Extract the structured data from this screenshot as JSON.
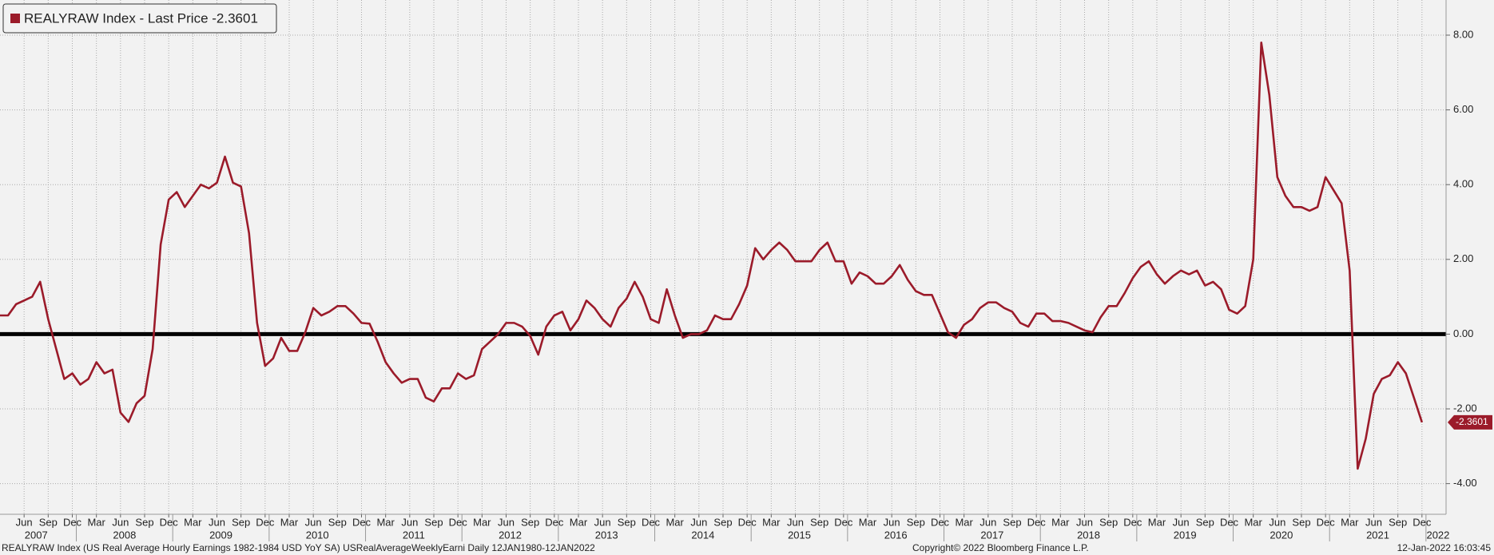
{
  "chart_data": {
    "type": "line",
    "series": [
      {
        "name": "REALYRAW Index - Last Price -2.3601",
        "color": "#9b1b2a",
        "values": [
          0.5,
          0.5,
          0.8,
          0.9,
          1.0,
          1.4,
          0.4,
          -0.4,
          -1.2,
          -1.05,
          -1.35,
          -1.2,
          -0.75,
          -1.05,
          -0.95,
          -2.1,
          -2.35,
          -1.85,
          -1.65,
          -0.4,
          2.4,
          3.6,
          3.8,
          3.4,
          3.7,
          4.0,
          3.9,
          4.05,
          4.75,
          4.05,
          3.95,
          2.7,
          0.3,
          -0.85,
          -0.65,
          -0.1,
          -0.45,
          -0.45,
          0.05,
          0.7,
          0.5,
          0.6,
          0.75,
          0.75,
          0.55,
          0.3,
          0.28,
          -0.2,
          -0.75,
          -1.05,
          -1.3,
          -1.2,
          -1.2,
          -1.7,
          -1.8,
          -1.45,
          -1.45,
          -1.05,
          -1.2,
          -1.1,
          -0.4,
          -0.2,
          0.0,
          0.3,
          0.3,
          0.2,
          -0.05,
          -0.55,
          0.2,
          0.5,
          0.6,
          0.1,
          0.4,
          0.9,
          0.7,
          0.4,
          0.2,
          0.7,
          0.95,
          1.4,
          1.0,
          0.4,
          0.3,
          1.2,
          0.5,
          -0.1,
          0.0,
          0.0,
          0.1,
          0.5,
          0.4,
          0.4,
          0.8,
          1.3,
          2.3,
          2.0,
          2.25,
          2.45,
          2.25,
          1.95,
          1.95,
          1.95,
          2.25,
          2.45,
          1.95,
          1.95,
          1.35,
          1.65,
          1.55,
          1.35,
          1.35,
          1.55,
          1.85,
          1.45,
          1.15,
          1.05,
          1.05,
          0.55,
          0.05,
          -0.1,
          0.25,
          0.4,
          0.7,
          0.85,
          0.85,
          0.7,
          0.6,
          0.3,
          0.2,
          0.55,
          0.55,
          0.35,
          0.35,
          0.3,
          0.2,
          0.1,
          0.05,
          0.45,
          0.75,
          0.75,
          1.1,
          1.5,
          1.8,
          1.95,
          1.6,
          1.35,
          1.55,
          1.7,
          1.6,
          1.7,
          1.3,
          1.4,
          1.2,
          0.65,
          0.55,
          0.75,
          2.0,
          7.8,
          6.4,
          4.2,
          3.7,
          3.4,
          3.4,
          3.3,
          3.4,
          4.2,
          3.85,
          3.5,
          1.7,
          -3.6,
          -2.8,
          -1.6,
          -1.2,
          -1.1,
          -0.75,
          -1.05,
          -1.7,
          -2.3601
        ]
      }
    ],
    "x": [
      "2007-03",
      "2007-04",
      "2007-05",
      "2007-06",
      "2007-07",
      "2007-08",
      "2007-09",
      "2007-10",
      "2007-11",
      "2007-12",
      "2008-01",
      "2008-02",
      "2008-03",
      "2008-04",
      "2008-05",
      "2008-06",
      "2008-07",
      "2008-08",
      "2008-09",
      "2008-10",
      "2008-11",
      "2008-12",
      "2009-01",
      "2009-02",
      "2009-03",
      "2009-04",
      "2009-05",
      "2009-06",
      "2009-07",
      "2009-08",
      "2009-09",
      "2009-10",
      "2009-11",
      "2009-12",
      "2010-01",
      "2010-02",
      "2010-03",
      "2010-04",
      "2010-05",
      "2010-06",
      "2010-07",
      "2010-08",
      "2010-09",
      "2010-10",
      "2010-11",
      "2010-12",
      "2011-01",
      "2011-02",
      "2011-03",
      "2011-04",
      "2011-05",
      "2011-06",
      "2011-07",
      "2011-08",
      "2011-09",
      "2011-10",
      "2011-11",
      "2011-12",
      "2012-01",
      "2012-02",
      "2012-03",
      "2012-04",
      "2012-05",
      "2012-06",
      "2012-07",
      "2012-08",
      "2012-09",
      "2012-10",
      "2012-11",
      "2012-12",
      "2013-01",
      "2013-02",
      "2013-03",
      "2013-04",
      "2013-05",
      "2013-06",
      "2013-07",
      "2013-08",
      "2013-09",
      "2013-10",
      "2013-11",
      "2013-12",
      "2014-01",
      "2014-02",
      "2014-03",
      "2014-04",
      "2014-05",
      "2014-06",
      "2014-07",
      "2014-08",
      "2014-09",
      "2014-10",
      "2014-11",
      "2014-12",
      "2015-01",
      "2015-02",
      "2015-03",
      "2015-04",
      "2015-05",
      "2015-06",
      "2015-07",
      "2015-08",
      "2015-09",
      "2015-10",
      "2015-11",
      "2015-12",
      "2016-01",
      "2016-02",
      "2016-03",
      "2016-04",
      "2016-05",
      "2016-06",
      "2016-07",
      "2016-08",
      "2016-09",
      "2016-10",
      "2016-11",
      "2016-12",
      "2017-01",
      "2017-02",
      "2017-03",
      "2017-04",
      "2017-05",
      "2017-06",
      "2017-07",
      "2017-08",
      "2017-09",
      "2017-10",
      "2017-11",
      "2017-12",
      "2018-01",
      "2018-02",
      "2018-03",
      "2018-04",
      "2018-05",
      "2018-06",
      "2018-07",
      "2018-08",
      "2018-09",
      "2018-10",
      "2018-11",
      "2018-12",
      "2019-01",
      "2019-02",
      "2019-03",
      "2019-04",
      "2019-05",
      "2019-06",
      "2019-07",
      "2019-08",
      "2019-09",
      "2019-10",
      "2019-11",
      "2019-12",
      "2020-01",
      "2020-02",
      "2020-03",
      "2020-04",
      "2020-05",
      "2020-06",
      "2020-07",
      "2020-08",
      "2020-09",
      "2020-10",
      "2020-11",
      "2020-12",
      "2021-01",
      "2021-02",
      "2021-03",
      "2021-04",
      "2021-05",
      "2021-06",
      "2021-07",
      "2021-08",
      "2021-09",
      "2021-10",
      "2021-11",
      "2021-12"
    ],
    "xlim": [
      "2007-03",
      "2022-03"
    ],
    "xticks": [
      {
        "value": "2007-06",
        "label": "Jun"
      },
      {
        "value": "2007-09",
        "label": "Sep"
      },
      {
        "value": "2007-12",
        "label": "Dec"
      },
      {
        "value": "2008-03",
        "label": "Mar"
      },
      {
        "value": "2008-06",
        "label": "Jun"
      },
      {
        "value": "2008-09",
        "label": "Sep"
      },
      {
        "value": "2008-12",
        "label": "Dec"
      },
      {
        "value": "2009-03",
        "label": "Mar"
      },
      {
        "value": "2009-06",
        "label": "Jun"
      },
      {
        "value": "2009-09",
        "label": "Sep"
      },
      {
        "value": "2009-12",
        "label": "Dec"
      },
      {
        "value": "2010-03",
        "label": "Mar"
      },
      {
        "value": "2010-06",
        "label": "Jun"
      },
      {
        "value": "2010-09",
        "label": "Sep"
      },
      {
        "value": "2010-12",
        "label": "Dec"
      },
      {
        "value": "2011-03",
        "label": "Mar"
      },
      {
        "value": "2011-06",
        "label": "Jun"
      },
      {
        "value": "2011-09",
        "label": "Sep"
      },
      {
        "value": "2011-12",
        "label": "Dec"
      },
      {
        "value": "2012-03",
        "label": "Mar"
      },
      {
        "value": "2012-06",
        "label": "Jun"
      },
      {
        "value": "2012-09",
        "label": "Sep"
      },
      {
        "value": "2012-12",
        "label": "Dec"
      },
      {
        "value": "2013-03",
        "label": "Mar"
      },
      {
        "value": "2013-06",
        "label": "Jun"
      },
      {
        "value": "2013-09",
        "label": "Sep"
      },
      {
        "value": "2013-12",
        "label": "Dec"
      },
      {
        "value": "2014-03",
        "label": "Mar"
      },
      {
        "value": "2014-06",
        "label": "Jun"
      },
      {
        "value": "2014-09",
        "label": "Sep"
      },
      {
        "value": "2014-12",
        "label": "Dec"
      },
      {
        "value": "2015-03",
        "label": "Mar"
      },
      {
        "value": "2015-06",
        "label": "Jun"
      },
      {
        "value": "2015-09",
        "label": "Sep"
      },
      {
        "value": "2015-12",
        "label": "Dec"
      },
      {
        "value": "2016-03",
        "label": "Mar"
      },
      {
        "value": "2016-06",
        "label": "Jun"
      },
      {
        "value": "2016-09",
        "label": "Sep"
      },
      {
        "value": "2016-12",
        "label": "Dec"
      },
      {
        "value": "2017-03",
        "label": "Mar"
      },
      {
        "value": "2017-06",
        "label": "Jun"
      },
      {
        "value": "2017-09",
        "label": "Sep"
      },
      {
        "value": "2017-12",
        "label": "Dec"
      },
      {
        "value": "2018-03",
        "label": "Mar"
      },
      {
        "value": "2018-06",
        "label": "Jun"
      },
      {
        "value": "2018-09",
        "label": "Sep"
      },
      {
        "value": "2018-12",
        "label": "Dec"
      },
      {
        "value": "2019-03",
        "label": "Mar"
      },
      {
        "value": "2019-06",
        "label": "Jun"
      },
      {
        "value": "2019-09",
        "label": "Sep"
      },
      {
        "value": "2019-12",
        "label": "Dec"
      },
      {
        "value": "2020-03",
        "label": "Mar"
      },
      {
        "value": "2020-06",
        "label": "Jun"
      },
      {
        "value": "2020-09",
        "label": "Sep"
      },
      {
        "value": "2020-12",
        "label": "Dec"
      },
      {
        "value": "2021-03",
        "label": "Mar"
      },
      {
        "value": "2021-06",
        "label": "Jun"
      },
      {
        "value": "2021-09",
        "label": "Sep"
      },
      {
        "value": "2021-12",
        "label": "Dec"
      }
    ],
    "year_ticks": [
      "2007",
      "2008",
      "2009",
      "2010",
      "2011",
      "2012",
      "2013",
      "2014",
      "2015",
      "2016",
      "2017",
      "2018",
      "2019",
      "2020",
      "2021",
      "2022"
    ],
    "ylim": [
      -4.82,
      8.94
    ],
    "yticks": [
      {
        "value": -4,
        "label": "-4.00"
      },
      {
        "value": -2,
        "label": "-2.00"
      },
      {
        "value": 0,
        "label": "0.00"
      },
      {
        "value": 2,
        "label": "2.00"
      },
      {
        "value": 4,
        "label": "4.00"
      },
      {
        "value": 6,
        "label": "6.00"
      },
      {
        "value": 8,
        "label": "8.00"
      }
    ],
    "reference_line": 0,
    "grid": true,
    "legend": "top-left"
  },
  "footer": {
    "description": "REALYRAW Index (US Real Average Hourly Earnings 1982-1984 USD YoY SA) USRealAverageWeeklyEarni  Daily 12JAN1980-12JAN2022",
    "copyright": "Copyright© 2022 Bloomberg Finance L.P.",
    "timestamp": "12-Jan-2022 16:03:45"
  }
}
